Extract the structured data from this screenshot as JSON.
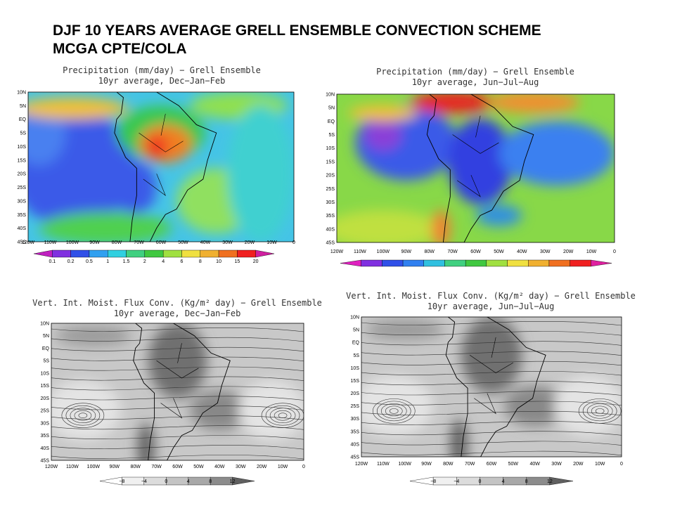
{
  "title": [
    "DJF 10 YEARS AVERAGE  GRELL ENSEMBLE CONVECTION SCHEME",
    "MCGA CPTE/COLA"
  ],
  "panels": [
    {
      "title": "Precipitation (mm/day) − Grell Ensemble",
      "subtitle": "10yr average, Dec−Jan−Feb",
      "lat_labels": [
        "10N",
        "5N",
        "EQ",
        "5S",
        "10S",
        "15S",
        "20S",
        "25S",
        "30S",
        "35S",
        "40S",
        "45S"
      ],
      "lon_labels": [
        "120W",
        "110W",
        "100W",
        "90W",
        "80W",
        "70W",
        "60W",
        "50W",
        "40W",
        "30W",
        "20W",
        "10W",
        "0"
      ],
      "colorbar_labels": [
        "0.1",
        "0.2",
        "0.5",
        "1",
        "1.5",
        "2",
        "4",
        "6",
        "8",
        "10",
        "15",
        "20"
      ]
    },
    {
      "title": "Precipitation (mm/day) − Grell Ensemble",
      "subtitle": "10yr average, Jun−Jul−Aug",
      "lat_labels": [
        "10N",
        "5N",
        "EQ",
        "5S",
        "10S",
        "15S",
        "20S",
        "25S",
        "30S",
        "35S",
        "40S",
        "45S"
      ],
      "lon_labels": [
        "120W",
        "110W",
        "100W",
        "90W",
        "80W",
        "70W",
        "60W",
        "50W",
        "40W",
        "30W",
        "20W",
        "10W",
        "0"
      ],
      "colorbar_labels": []
    },
    {
      "title": "Vert. Int. Moist. Flux Conv. (Kg/m² day) − Grell Ensemble",
      "subtitle": "10yr average, Dec−Jan−Feb",
      "lat_labels": [
        "10N",
        "5N",
        "EQ",
        "5S",
        "10S",
        "15S",
        "20S",
        "25S",
        "30S",
        "35S",
        "40S",
        "45S"
      ],
      "lon_labels": [
        "120W",
        "110W",
        "100W",
        "90W",
        "80W",
        "70W",
        "60W",
        "50W",
        "40W",
        "30W",
        "20W",
        "10W",
        "0"
      ],
      "colorbar_labels": [
        "−8",
        "−4",
        "0",
        "4",
        "8",
        "12"
      ]
    },
    {
      "title": "Vert. Int. Moist. Flux Conv. (Kg/m² day) − Grell Ensemble",
      "subtitle": "10yr average, Jun−Jul−Aug",
      "lat_labels": [
        "10N",
        "5N",
        "EQ",
        "5S",
        "10S",
        "15S",
        "20S",
        "25S",
        "30S",
        "35S",
        "40S",
        "45S"
      ],
      "lon_labels": [
        "120W",
        "110W",
        "100W",
        "90W",
        "80W",
        "70W",
        "60W",
        "50W",
        "40W",
        "30W",
        "20W",
        "10W",
        "0"
      ],
      "colorbar_labels": [
        "−8",
        "−4",
        "0",
        "4",
        "8",
        "12"
      ]
    }
  ]
}
